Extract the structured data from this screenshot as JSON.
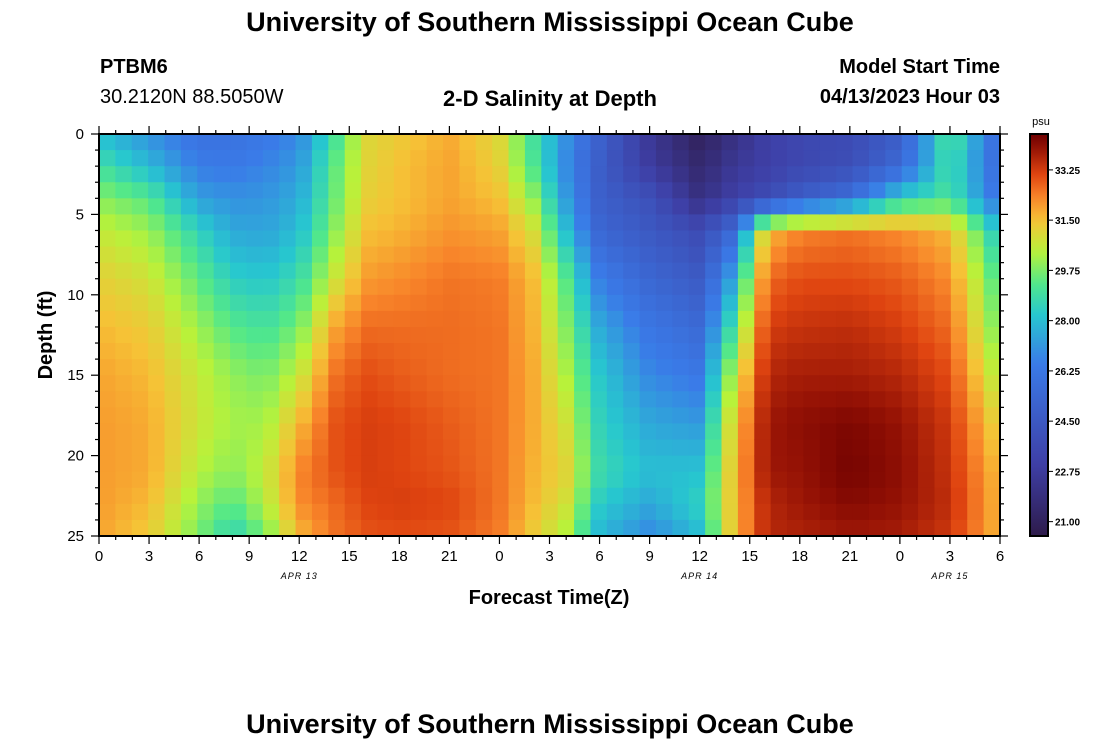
{
  "header": {
    "title": "University of Southern Mississippi Ocean Cube",
    "station_id": "PTBM6",
    "coords": "30.2120N  88.5050W",
    "chart_title": "2-D Salinity at Depth",
    "model_label": "Model Start Time",
    "model_time": "04/13/2023 Hour 03"
  },
  "footer": {
    "title": "University of Southern Mississippi Ocean Cube"
  },
  "chart_data": {
    "type": "heatmap",
    "title": "2-D Salinity at Depth",
    "xlabel": "Forecast Time(Z)",
    "ylabel": "Depth (ft)",
    "x_ticks": [
      "0",
      "3",
      "6",
      "9",
      "12",
      "15",
      "18",
      "21",
      "0",
      "3",
      "6",
      "9",
      "12",
      "15",
      "18",
      "21",
      "0",
      "3",
      "6"
    ],
    "x_range_hours": [
      0,
      54
    ],
    "y_ticks": [
      "0",
      "5",
      "10",
      "15",
      "20",
      "25"
    ],
    "y_range_ft": [
      0,
      25
    ],
    "date_labels": [
      {
        "text": "APR 13",
        "hour": 12
      },
      {
        "text": "APR 14",
        "hour": 36
      },
      {
        "text": "APR 15",
        "hour": 51
      }
    ],
    "colorbar": {
      "units": "psu",
      "ticks": [
        "33.25",
        "31.50",
        "29.75",
        "28.00",
        "26.25",
        "24.50",
        "22.75",
        "21.00"
      ],
      "range": [
        20.5,
        34.5
      ]
    },
    "grid_shape": {
      "cols": 55,
      "rows": 25
    },
    "keyframes_desc": "salinity (psu) at depths 0,2,4,6,9,12,15,18,21,23,25 ft for selected forecast hours",
    "keyframes": [
      {
        "hour": 0,
        "values": [
          28.0,
          29.0,
          29.9,
          30.6,
          31.2,
          31.6,
          31.9,
          32.0,
          32.0,
          32.0,
          31.9
        ]
      },
      {
        "hour": 3,
        "values": [
          27.0,
          27.9,
          29.3,
          30.1,
          30.8,
          31.3,
          31.6,
          31.8,
          31.8,
          31.6,
          31.3
        ]
      },
      {
        "hour": 6,
        "values": [
          26.0,
          26.5,
          27.3,
          28.5,
          29.4,
          30.1,
          30.6,
          30.7,
          30.4,
          30.0,
          29.7
        ]
      },
      {
        "hour": 8,
        "values": [
          26.0,
          26.4,
          27.0,
          27.5,
          28.4,
          29.3,
          30.0,
          30.2,
          29.9,
          29.3,
          28.5
        ]
      },
      {
        "hour": 10,
        "values": [
          26.3,
          26.7,
          27.1,
          27.4,
          28.2,
          29.0,
          29.7,
          30.2,
          30.6,
          30.4,
          29.7
        ]
      },
      {
        "hour": 12,
        "values": [
          26.8,
          27.2,
          27.6,
          28.0,
          28.8,
          29.7,
          30.6,
          31.6,
          32.3,
          32.2,
          31.6
        ]
      },
      {
        "hour": 14,
        "values": [
          28.8,
          29.3,
          29.4,
          29.8,
          30.6,
          31.8,
          32.5,
          32.9,
          32.9,
          32.6,
          32.5
        ]
      },
      {
        "hour": 16,
        "values": [
          31.0,
          31.1,
          31.2,
          31.5,
          32.0,
          32.6,
          33.0,
          33.2,
          33.2,
          33.1,
          32.9
        ]
      },
      {
        "hour": 18,
        "values": [
          31.3,
          31.5,
          31.5,
          31.7,
          32.2,
          32.6,
          32.8,
          33.1,
          33.1,
          33.2,
          33.0
        ]
      },
      {
        "hour": 21,
        "values": [
          31.8,
          31.9,
          31.9,
          32.1,
          32.5,
          32.6,
          32.6,
          32.8,
          32.9,
          33.1,
          32.9
        ]
      },
      {
        "hour": 24,
        "values": [
          31.0,
          31.2,
          31.5,
          31.9,
          32.4,
          32.5,
          32.5,
          32.5,
          32.5,
          32.5,
          32.4
        ]
      },
      {
        "hour": 26,
        "values": [
          29.0,
          29.2,
          30.0,
          30.9,
          31.6,
          31.7,
          31.8,
          31.8,
          31.7,
          31.6,
          31.3
        ]
      },
      {
        "hour": 28,
        "values": [
          27.0,
          26.8,
          27.2,
          28.0,
          29.3,
          29.8,
          30.3,
          30.8,
          31.1,
          30.8,
          30.3
        ]
      },
      {
        "hour": 30,
        "values": [
          25.0,
          24.8,
          24.9,
          25.3,
          26.5,
          27.5,
          28.2,
          28.5,
          28.8,
          28.3,
          27.8
        ]
      },
      {
        "hour": 33,
        "values": [
          22.5,
          22.8,
          24.0,
          24.5,
          25.3,
          26.2,
          26.8,
          27.5,
          28.0,
          27.5,
          26.8
        ]
      },
      {
        "hour": 36,
        "values": [
          21.0,
          21.5,
          22.0,
          23.7,
          24.6,
          25.5,
          26.3,
          27.2,
          28.1,
          28.5,
          27.9
        ]
      },
      {
        "hour": 38,
        "values": [
          22.0,
          22.5,
          23.0,
          25.5,
          27.5,
          29.0,
          30.4,
          31.2,
          31.5,
          31.5,
          31.5
        ]
      },
      {
        "hour": 40,
        "values": [
          23.0,
          23.0,
          23.8,
          31.5,
          32.6,
          33.2,
          33.6,
          33.9,
          33.9,
          33.6,
          33.6
        ]
      },
      {
        "hour": 42,
        "values": [
          23.5,
          23.5,
          24.8,
          32.3,
          33.0,
          33.4,
          33.8,
          34.1,
          34.0,
          33.9,
          33.7
        ]
      },
      {
        "hour": 45,
        "values": [
          23.7,
          23.9,
          25.8,
          32.5,
          33.0,
          33.5,
          33.8,
          34.3,
          34.4,
          34.2,
          33.9
        ]
      },
      {
        "hour": 48,
        "values": [
          24.8,
          25.5,
          28.4,
          32.2,
          32.8,
          33.2,
          33.6,
          34.0,
          34.1,
          34.0,
          33.8
        ]
      },
      {
        "hour": 51,
        "values": [
          29.4,
          29.0,
          29.1,
          31.6,
          32.2,
          32.6,
          33.0,
          33.3,
          33.4,
          33.5,
          33.3
        ]
      },
      {
        "hour": 54,
        "values": [
          25.5,
          25.5,
          26.0,
          28.0,
          29.0,
          29.5,
          30.2,
          31.0,
          31.5,
          31.6,
          31.6
        ]
      }
    ],
    "colors": {
      "stops": [
        "#2e1b4a",
        "#3e3fa6",
        "#3a7be8",
        "#27c7cf",
        "#52e88a",
        "#b8f23a",
        "#f6c236",
        "#f8852a",
        "#df4410",
        "#951205",
        "#6e0000"
      ],
      "stop_values": [
        20.5,
        23.0,
        26.5,
        28.2,
        29.3,
        30.4,
        31.5,
        32.3,
        33.1,
        34.0,
        34.5
      ],
      "frame": "#000000"
    }
  }
}
